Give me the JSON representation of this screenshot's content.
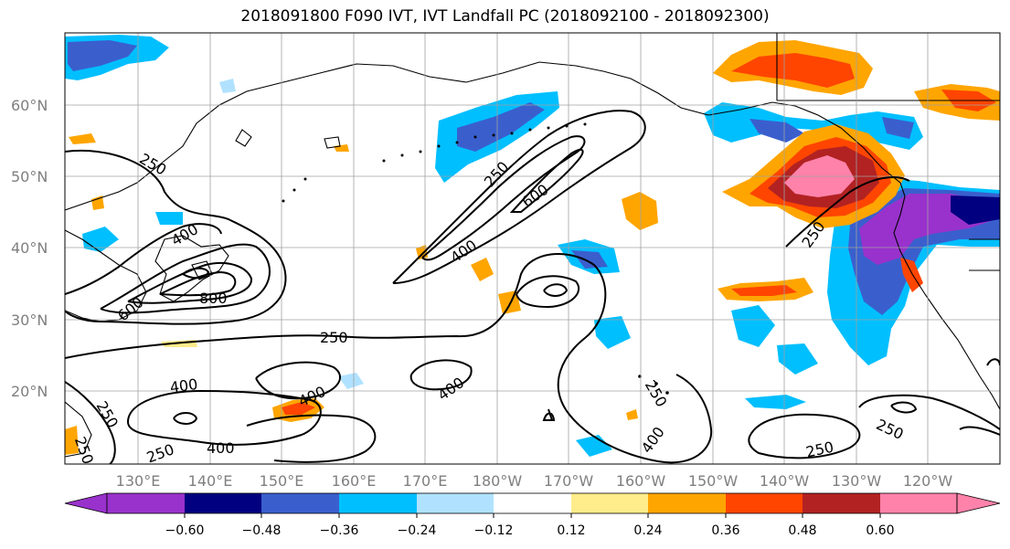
{
  "title": "2018091800 F090 IVT, IVT Landfall PC (2018092100 - 2018092300)",
  "lat_labels": [
    "60°N",
    "50°N",
    "40°N",
    "30°N",
    "20°N"
  ],
  "lon_labels": [
    "130°E",
    "140°E",
    "150°E",
    "160°E",
    "170°E",
    "180°W",
    "170°W",
    "160°W",
    "150°W",
    "140°W",
    "130°W",
    "120°W"
  ],
  "contour_labels": [
    "250",
    "250",
    "400",
    "600",
    "400",
    "800",
    "600",
    "250",
    "400",
    "400",
    "250",
    "250",
    "400",
    "400",
    "250",
    "400",
    "250",
    "250",
    "250",
    "250"
  ],
  "colorbar": {
    "ticks": [
      "−0.60",
      "−0.48",
      "−0.36",
      "−0.24",
      "−0.12",
      "0.12",
      "0.24",
      "0.36",
      "0.48",
      "0.60"
    ],
    "colors": [
      "#9932cc",
      "#000080",
      "#3a5fcd",
      "#00bfff",
      "#b0e2ff",
      "#ffffff",
      "#ffec8b",
      "#ffa500",
      "#ff4500",
      "#b22222",
      "#ff82ab"
    ]
  }
}
